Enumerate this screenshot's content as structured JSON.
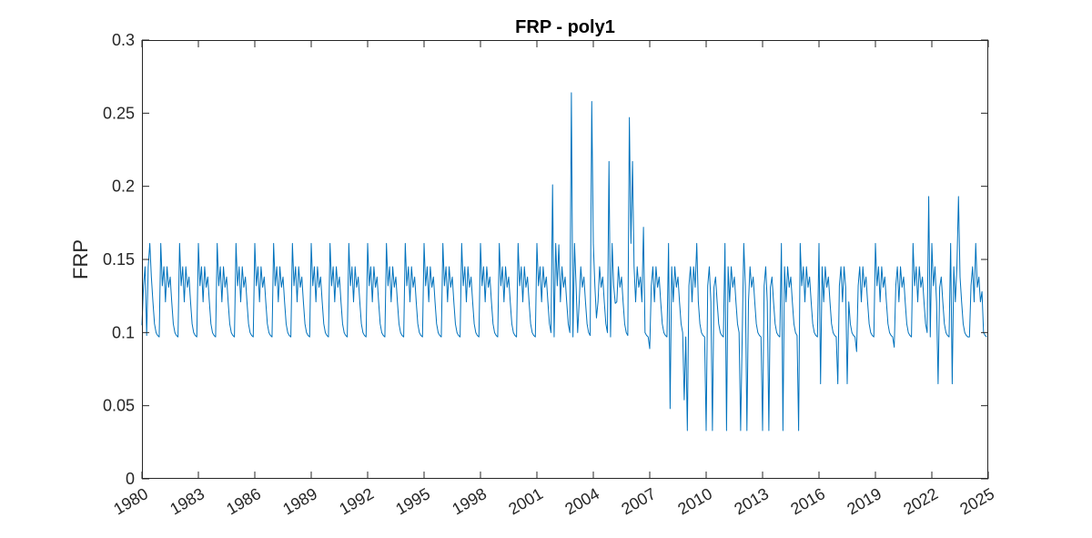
{
  "chart_data": {
    "type": "line",
    "title": "FRP - poly1",
    "xlabel": "",
    "ylabel": "FRP",
    "xlim": [
      1980,
      2025
    ],
    "ylim": [
      0,
      0.3
    ],
    "grid": false,
    "x_ticks": [
      "1980",
      "1983",
      "1986",
      "1989",
      "1992",
      "1995",
      "1998",
      "2001",
      "2004",
      "2007",
      "2010",
      "2013",
      "2016",
      "2019",
      "2022",
      "2025"
    ],
    "y_ticks": [
      "0",
      "0.05",
      "0.1",
      "0.15",
      "0.2",
      "0.25",
      "0.3"
    ],
    "series": [
      {
        "color": "#0072BD",
        "monthly_profile": [
          0.161,
          0.132,
          0.145,
          0.121,
          0.145,
          0.131,
          0.138,
          0.121,
          0.106,
          0.1,
          0.098,
          0.097
        ],
        "values": [
          {
            "x": 1980.0,
            "y": 0.105
          },
          {
            "x": 1980.25,
            "y": 0.098
          },
          {
            "x": 1980.45,
            "y": 0.161
          },
          {
            "x": 2001.8,
            "y": 0.201
          },
          {
            "x": 2002.2,
            "y": 0.16
          },
          {
            "x": 2002.8,
            "y": 0.264
          },
          {
            "x": 2003.2,
            "y": 0.1
          },
          {
            "x": 2003.9,
            "y": 0.258
          },
          {
            "x": 2004.2,
            "y": 0.11
          },
          {
            "x": 2004.8,
            "y": 0.217
          },
          {
            "x": 2005.2,
            "y": 0.12
          },
          {
            "x": 2005.9,
            "y": 0.247
          },
          {
            "x": 2006.1,
            "y": 0.217
          },
          {
            "x": 2006.7,
            "y": 0.172
          },
          {
            "x": 2007.0,
            "y": 0.089
          },
          {
            "x": 2008.1,
            "y": 0.048
          },
          {
            "x": 2008.8,
            "y": 0.054
          },
          {
            "x": 2009.0,
            "y": 0.033
          },
          {
            "x": 2009.5,
            "y": 0.161
          },
          {
            "x": 2010.0,
            "y": 0.033
          },
          {
            "x": 2010.3,
            "y": 0.033
          },
          {
            "x": 2011.1,
            "y": 0.033
          },
          {
            "x": 2011.8,
            "y": 0.033
          },
          {
            "x": 2012.2,
            "y": 0.033
          },
          {
            "x": 2013.0,
            "y": 0.033
          },
          {
            "x": 2013.3,
            "y": 0.033
          },
          {
            "x": 2014.1,
            "y": 0.033
          },
          {
            "x": 2014.9,
            "y": 0.033
          },
          {
            "x": 2016.1,
            "y": 0.065
          },
          {
            "x": 2017.0,
            "y": 0.065
          },
          {
            "x": 2017.5,
            "y": 0.065
          },
          {
            "x": 2018.0,
            "y": 0.087
          },
          {
            "x": 2020.0,
            "y": 0.09
          },
          {
            "x": 2021.8,
            "y": 0.193
          },
          {
            "x": 2022.3,
            "y": 0.065
          },
          {
            "x": 2023.4,
            "y": 0.193
          },
          {
            "x": 2023.1,
            "y": 0.065
          },
          {
            "x": 2024.0,
            "y": 0.097
          },
          {
            "x": 2024.3,
            "y": 0.161
          },
          {
            "x": 2024.7,
            "y": 0.128
          }
        ]
      }
    ]
  }
}
